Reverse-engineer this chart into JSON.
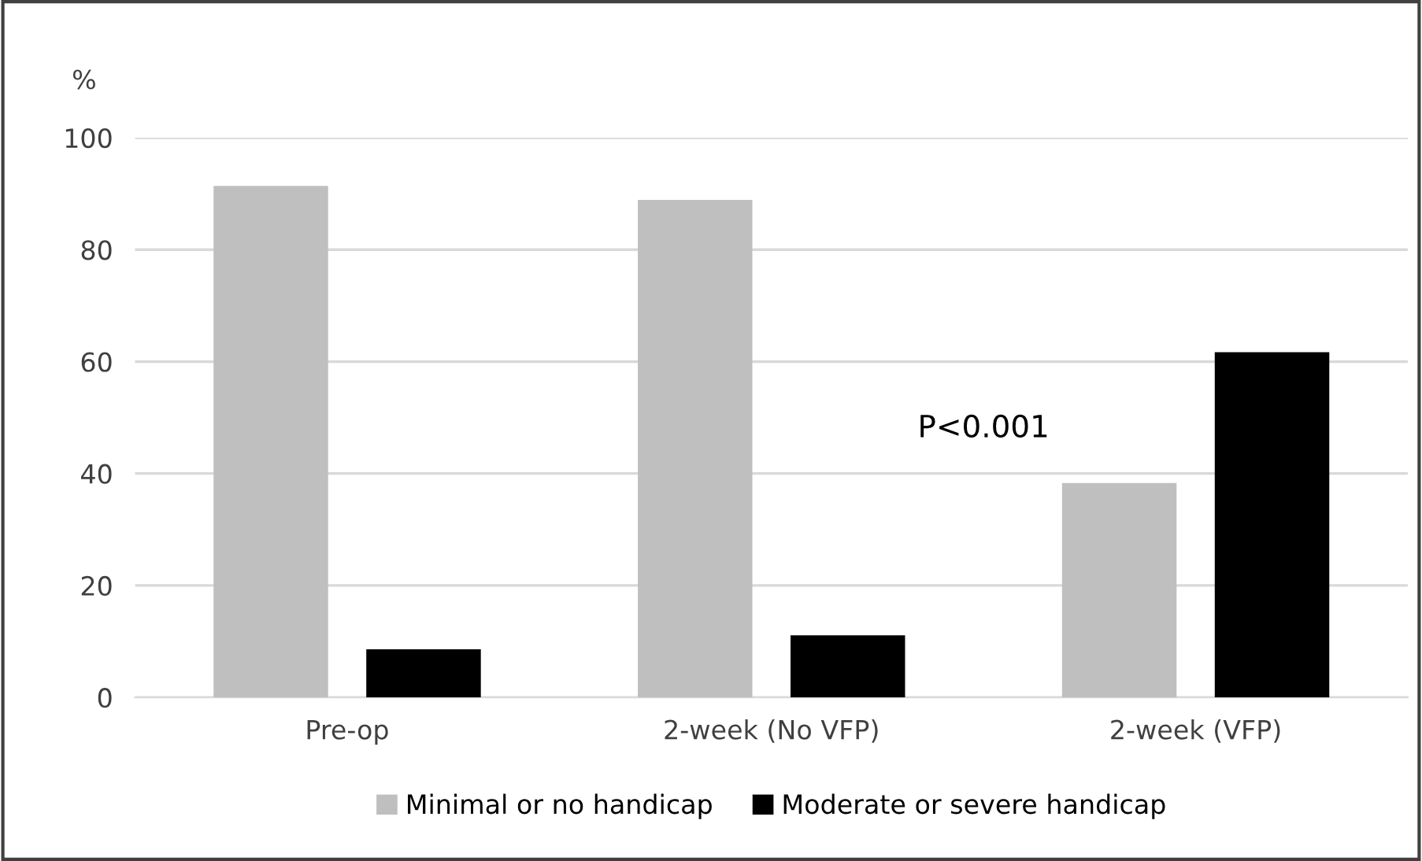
{
  "chart_data": {
    "type": "bar",
    "ylabel": "%",
    "categories": [
      "Pre-op",
      "2-week (No VFP)",
      "2-week (VFP)"
    ],
    "series": [
      {
        "name": "Minimal or no handicap",
        "color": "#bfbfbf",
        "values": [
          91.4,
          88.9,
          38.3
        ]
      },
      {
        "name": "Moderate or severe handicap",
        "color": "#000000",
        "values": [
          8.6,
          11.1,
          61.7
        ]
      }
    ],
    "ylim": [
      0,
      100
    ],
    "yticks": [
      0,
      20,
      40,
      60,
      80,
      100
    ],
    "grid": "y",
    "legend": "bottom",
    "annotations": [
      "P<0.001"
    ]
  }
}
